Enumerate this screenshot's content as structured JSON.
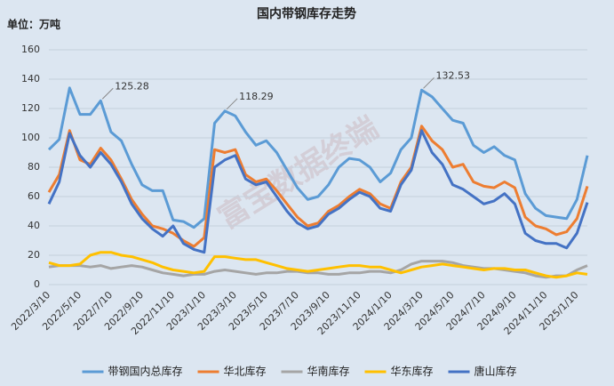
{
  "chart_data": {
    "type": "line",
    "title": "国内带钢库存走势",
    "unit": "单位：万吨",
    "watermark": "富宝数据终端",
    "categories": [
      "2022/3/10",
      null,
      null,
      "2022/5/10",
      null,
      null,
      "2022/7/10",
      null,
      null,
      "2022/9/10",
      null,
      null,
      "2022/11/10",
      null,
      null,
      "2023/1/10",
      null,
      null,
      "2023/3/10",
      null,
      null,
      "2023/5/10",
      null,
      null,
      "2023/7/10",
      null,
      null,
      "2023/9/10",
      null,
      null,
      "2023/11/10",
      null,
      null,
      "2024/1/10",
      null,
      null,
      "2024/3/10",
      null,
      null,
      "2024/5/10",
      null,
      null,
      "2024/7/10",
      null,
      null,
      "2024/9/10",
      null,
      null,
      "2024/11/10",
      null,
      null,
      "2025/1/10",
      null
    ],
    "ylim": [
      0,
      160
    ],
    "yticks": [
      0,
      20,
      40,
      60,
      80,
      100,
      120,
      140,
      160
    ],
    "grid": true,
    "series": [
      {
        "name": "带钢国内总库存",
        "color": "#5b9bd5",
        "labeled_indices": [
          5,
          17,
          36
        ],
        "values": [
          92,
          99,
          134,
          116,
          116,
          125.28,
          104,
          98,
          82,
          68,
          64,
          64,
          44,
          43,
          39,
          45,
          110,
          118.29,
          115,
          104,
          95,
          98,
          90,
          78,
          66,
          58,
          60,
          68,
          80,
          86,
          85,
          80,
          70,
          76,
          92,
          100,
          132.53,
          128,
          120,
          112,
          110,
          95,
          90,
          94,
          88,
          85,
          62,
          52,
          47,
          46,
          45,
          58,
          88
        ]
      },
      {
        "name": "华北库存",
        "color": "#ed7d31",
        "values": [
          63,
          75,
          105,
          85,
          82,
          93,
          85,
          72,
          58,
          48,
          40,
          38,
          35,
          30,
          26,
          32,
          92,
          90,
          92,
          75,
          70,
          72,
          64,
          55,
          46,
          40,
          42,
          50,
          54,
          60,
          65,
          62,
          55,
          52,
          70,
          80,
          108,
          98,
          92,
          80,
          82,
          70,
          67,
          66,
          70,
          66,
          46,
          40,
          38,
          34,
          36,
          45,
          67
        ]
      },
      {
        "name": "华南库存",
        "color": "#a5a5a5",
        "values": [
          12,
          13,
          13,
          13,
          12,
          13,
          11,
          12,
          13,
          12,
          10,
          8,
          7,
          6,
          7,
          7,
          9,
          10,
          9,
          8,
          7,
          8,
          8,
          9,
          9,
          8,
          8,
          7,
          7,
          8,
          8,
          9,
          9,
          8,
          10,
          14,
          16,
          16,
          16,
          15,
          13,
          12,
          11,
          11,
          10,
          9,
          8,
          6,
          5,
          6,
          6,
          10,
          13
        ]
      },
      {
        "name": "华东库存",
        "color": "#ffc000",
        "values": [
          15,
          13,
          13,
          14,
          20,
          22,
          22,
          20,
          19,
          17,
          15,
          12,
          10,
          9,
          8,
          9,
          19,
          19,
          18,
          17,
          17,
          15,
          13,
          11,
          10,
          9,
          10,
          11,
          12,
          13,
          13,
          12,
          12,
          10,
          8,
          10,
          12,
          13,
          14,
          13,
          12,
          11,
          10,
          11,
          11,
          10,
          10,
          8,
          6,
          5,
          6,
          8,
          7
        ]
      },
      {
        "name": "唐山库存",
        "color": "#4472c4",
        "values": [
          55,
          70,
          103,
          88,
          80,
          90,
          82,
          70,
          55,
          45,
          38,
          33,
          40,
          28,
          24,
          22,
          80,
          85,
          88,
          72,
          68,
          70,
          60,
          50,
          42,
          38,
          40,
          48,
          52,
          58,
          63,
          60,
          52,
          50,
          68,
          78,
          105,
          90,
          82,
          68,
          65,
          60,
          55,
          57,
          62,
          55,
          35,
          30,
          28,
          28,
          25,
          35,
          56
        ]
      }
    ]
  }
}
